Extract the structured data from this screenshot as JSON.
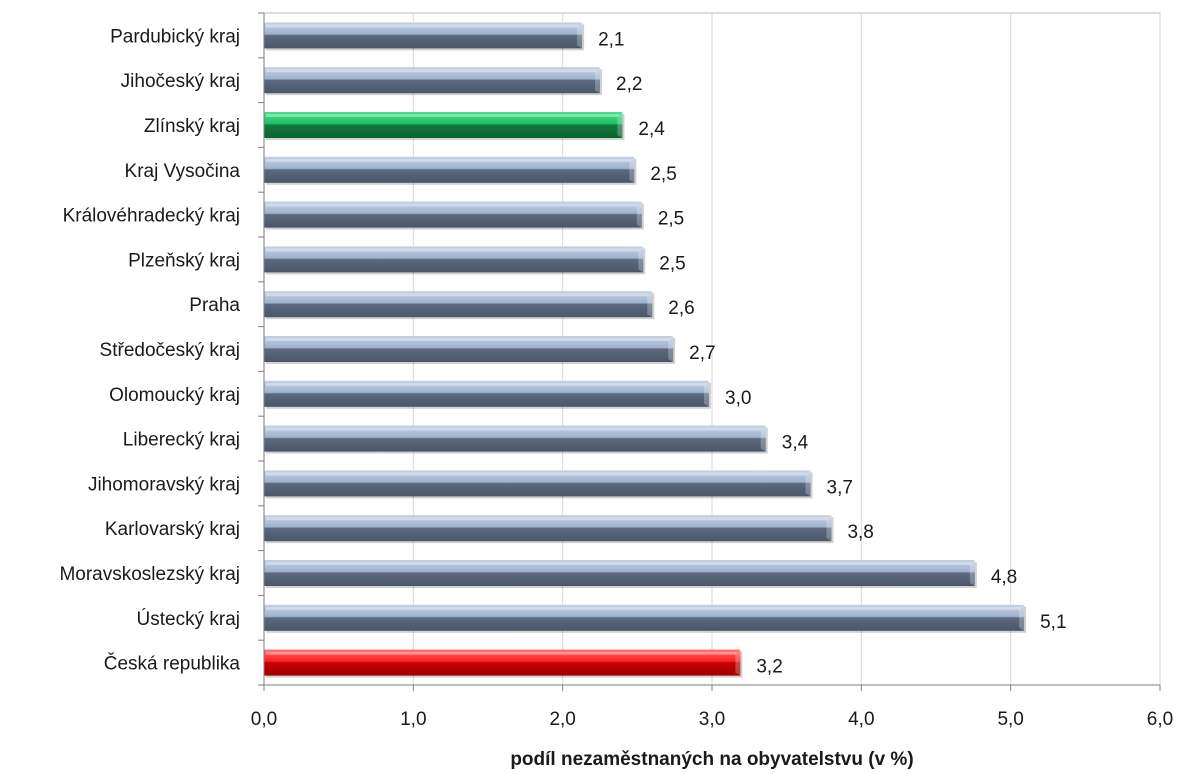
{
  "chart_data": {
    "type": "bar",
    "orientation": "horizontal",
    "categories": [
      "Pardubický kraj",
      "Jihočeský kraj",
      "Zlínský kraj",
      "Kraj Vysočina",
      "Královéhradecký kraj",
      "Plzeňský kraj",
      "Praha",
      "Středočeský kraj",
      "Olomoucký kraj",
      "Liberecký kraj",
      "Jihomoravský kraj",
      "Karlovarský kraj",
      "Moravskoslezský kraj",
      "Ústecký kraj",
      "Česká republika"
    ],
    "values": [
      2.13,
      2.25,
      2.4,
      2.48,
      2.53,
      2.54,
      2.6,
      2.74,
      2.98,
      3.36,
      3.66,
      3.8,
      4.76,
      5.09,
      3.19
    ],
    "data_labels": [
      "2,1",
      "2,2",
      "2,4",
      "2,5",
      "2,5",
      "2,5",
      "2,6",
      "2,7",
      "3,0",
      "3,4",
      "3,7",
      "3,8",
      "4,8",
      "5,1",
      "3,2"
    ],
    "bar_styles": [
      "default",
      "default",
      "green",
      "default",
      "default",
      "default",
      "default",
      "default",
      "default",
      "default",
      "default",
      "default",
      "default",
      "default",
      "red"
    ],
    "colors": {
      "default_top": "#9fb3cf",
      "default_bottom": "#4f5b6e",
      "green_top": "#22c46a",
      "green_bottom": "#0d6b34",
      "red_top": "#ff3030",
      "red_bottom": "#a30000"
    },
    "xlim": [
      0,
      6
    ],
    "xticks": [
      "0,0",
      "1,0",
      "2,0",
      "3,0",
      "4,0",
      "5,0",
      "6,0"
    ],
    "xlabel": "podíl nezaměstnaných na obyvatelstvu (v %)",
    "ylabel": "",
    "title": "",
    "grid": "vertical"
  }
}
